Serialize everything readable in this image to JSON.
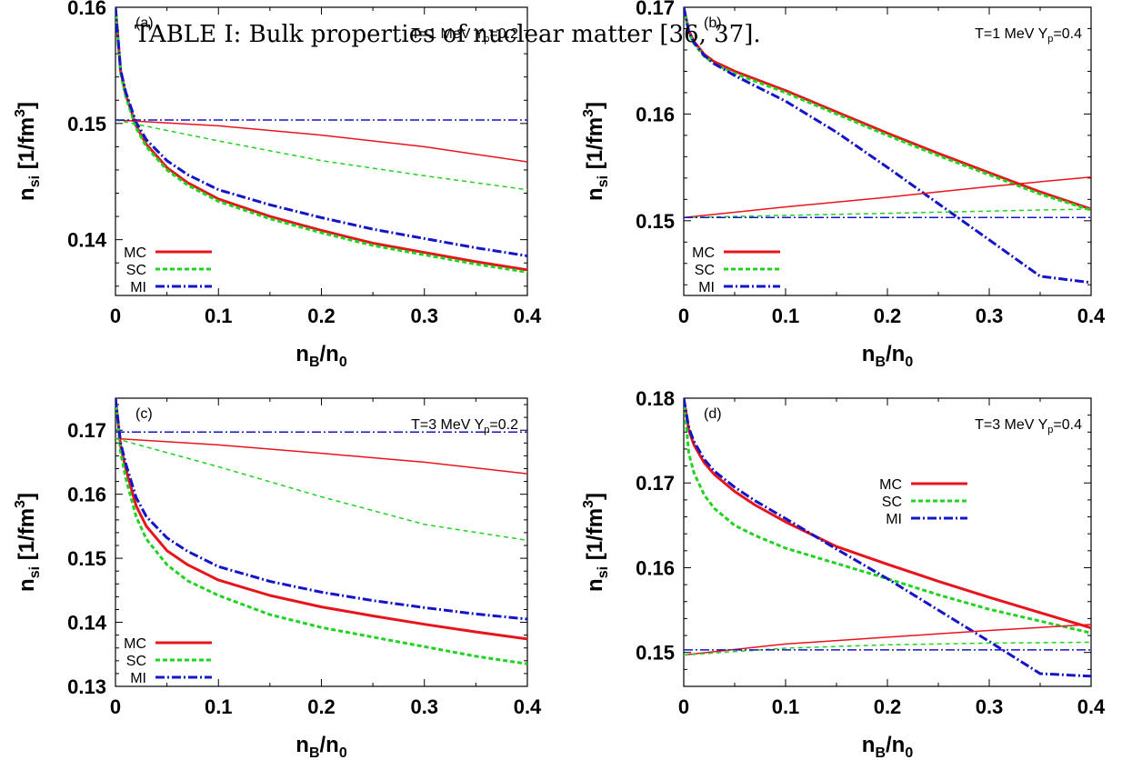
{
  "caption": "TABLE I: Bulk properties of nuclear matter [36, 37].",
  "colors": {
    "MC": "#e8141c",
    "SC": "#1fd31f",
    "MI": "#1414c8"
  },
  "chart_data": [
    {
      "type": "line",
      "panel_label": "(a)",
      "annotation": {
        "main": "T=1 MeV Y",
        "sub": "p",
        "tail": "=0.2"
      },
      "xlabel": {
        "main": "n",
        "sub": "B",
        "mid": "/n",
        "sub2": "0"
      },
      "ylabel": {
        "main": "n",
        "sub": "si",
        "mid": " [1/fm",
        "sup": "3",
        "tail": "]"
      },
      "xlim": [
        0,
        0.4
      ],
      "ylim": [
        0.1352,
        0.16
      ],
      "xticks": [
        "0",
        "0.1",
        "0.2",
        "0.3",
        "0.4"
      ],
      "yticks": [
        "0.14",
        "0.15",
        "0.16"
      ],
      "ytick_values": [
        0.14,
        0.15,
        0.16
      ],
      "legend": {
        "position": "bottom-left",
        "entries": [
          "MC",
          "SC",
          "MI"
        ]
      },
      "series": [
        {
          "name": "MC",
          "style": "thick",
          "x": [
            0,
            0.005,
            0.01,
            0.02,
            0.03,
            0.05,
            0.07,
            0.1,
            0.15,
            0.2,
            0.25,
            0.3,
            0.35,
            0.4
          ],
          "y": [
            0.16,
            0.1545,
            0.1525,
            0.1498,
            0.1482,
            0.1462,
            0.1449,
            0.1435,
            0.142,
            0.1408,
            0.1397,
            0.1389,
            0.1381,
            0.1374
          ]
        },
        {
          "name": "SC",
          "style": "thick",
          "x": [
            0,
            0.005,
            0.01,
            0.02,
            0.03,
            0.05,
            0.07,
            0.1,
            0.15,
            0.2,
            0.25,
            0.3,
            0.35,
            0.4
          ],
          "y": [
            0.16,
            0.1543,
            0.1523,
            0.1496,
            0.148,
            0.146,
            0.1447,
            0.1433,
            0.1418,
            0.1406,
            0.1395,
            0.1387,
            0.1379,
            0.1372
          ]
        },
        {
          "name": "MI",
          "style": "thick",
          "x": [
            0,
            0.005,
            0.01,
            0.02,
            0.03,
            0.05,
            0.07,
            0.1,
            0.15,
            0.2,
            0.25,
            0.3,
            0.35,
            0.4
          ],
          "y": [
            0.16,
            0.1546,
            0.1527,
            0.1501,
            0.1486,
            0.1468,
            0.1456,
            0.1443,
            0.143,
            0.1419,
            0.1409,
            0.1401,
            0.1393,
            0.1386
          ]
        },
        {
          "name": "MC",
          "style": "thin",
          "x": [
            0,
            0.1,
            0.2,
            0.3,
            0.4
          ],
          "y": [
            0.1503,
            0.1498,
            0.149,
            0.148,
            0.1467
          ]
        },
        {
          "name": "SC",
          "style": "thin",
          "x": [
            0,
            0.1,
            0.2,
            0.3,
            0.4
          ],
          "y": [
            0.1503,
            0.1485,
            0.1468,
            0.1455,
            0.1443
          ]
        },
        {
          "name": "MI",
          "style": "thin",
          "x": [
            0,
            0.4
          ],
          "y": [
            0.1503,
            0.1503
          ]
        }
      ]
    },
    {
      "type": "line",
      "panel_label": "(b)",
      "annotation": {
        "main": "T=1 MeV Y",
        "sub": "p",
        "tail": "=0.4"
      },
      "xlabel": {
        "main": "n",
        "sub": "B",
        "mid": "/n",
        "sub2": "0"
      },
      "ylabel": {
        "main": "n",
        "sub": "si",
        "mid": " [1/fm",
        "sup": "3",
        "tail": "]"
      },
      "xlim": [
        0,
        0.4
      ],
      "ylim": [
        0.143,
        0.17
      ],
      "xticks": [
        "0",
        "0.1",
        "0.2",
        "0.3",
        "0.4"
      ],
      "yticks": [
        "0.15",
        "0.16",
        "0.17"
      ],
      "ytick_values": [
        0.15,
        0.16,
        0.17
      ],
      "legend": {
        "position": "bottom-left",
        "entries": [
          "MC",
          "SC",
          "MI"
        ]
      },
      "series": [
        {
          "name": "MC",
          "style": "thick",
          "x": [
            0,
            0.005,
            0.01,
            0.02,
            0.03,
            0.05,
            0.1,
            0.15,
            0.2,
            0.25,
            0.3,
            0.35,
            0.4
          ],
          "y": [
            0.17,
            0.1678,
            0.1668,
            0.1656,
            0.1649,
            0.164,
            0.1622,
            0.1602,
            0.1582,
            0.1563,
            0.1545,
            0.1527,
            0.1511
          ]
        },
        {
          "name": "SC",
          "style": "thick",
          "x": [
            0,
            0.005,
            0.01,
            0.02,
            0.03,
            0.05,
            0.1,
            0.15,
            0.2,
            0.25,
            0.3,
            0.35,
            0.4
          ],
          "y": [
            0.17,
            0.1676,
            0.1666,
            0.1654,
            0.1647,
            0.1638,
            0.162,
            0.16,
            0.158,
            0.1561,
            0.1543,
            0.1525,
            0.151
          ]
        },
        {
          "name": "MI",
          "style": "thick",
          "x": [
            0,
            0.005,
            0.01,
            0.02,
            0.03,
            0.05,
            0.1,
            0.15,
            0.2,
            0.25,
            0.3,
            0.35,
            0.4
          ],
          "y": [
            0.17,
            0.1677,
            0.1667,
            0.1655,
            0.1647,
            0.1636,
            0.1612,
            0.1583,
            0.155,
            0.1516,
            0.1482,
            0.1448,
            0.1442
          ]
        },
        {
          "name": "MC",
          "style": "thin",
          "x": [
            0,
            0.1,
            0.2,
            0.3,
            0.4
          ],
          "y": [
            0.1503,
            0.1513,
            0.1522,
            0.1532,
            0.1541
          ]
        },
        {
          "name": "SC",
          "style": "thin",
          "x": [
            0,
            0.1,
            0.2,
            0.3,
            0.4
          ],
          "y": [
            0.1503,
            0.1505,
            0.1507,
            0.1509,
            0.1511
          ]
        },
        {
          "name": "MI",
          "style": "thin",
          "x": [
            0,
            0.4
          ],
          "y": [
            0.1503,
            0.1503
          ]
        }
      ]
    },
    {
      "type": "line",
      "panel_label": "(c)",
      "annotation": {
        "main": "T=3 MeV Y",
        "sub": "p",
        "tail": "=0.2"
      },
      "xlabel": {
        "main": "n",
        "sub": "B",
        "mid": "/n",
        "sub2": "0"
      },
      "ylabel": {
        "main": "n",
        "sub": "si",
        "mid": " [1/fm",
        "sup": "3",
        "tail": "]"
      },
      "xlim": [
        0,
        0.4
      ],
      "ylim": [
        0.13,
        0.175
      ],
      "xticks": [
        "0",
        "0.1",
        "0.2",
        "0.3",
        "0.4"
      ],
      "yticks": [
        "0.13",
        "0.14",
        "0.15",
        "0.16",
        "0.17"
      ],
      "ytick_values": [
        0.13,
        0.14,
        0.15,
        0.16,
        0.17
      ],
      "legend": {
        "position": "bottom-left",
        "entries": [
          "MC",
          "SC",
          "MI"
        ]
      },
      "series": [
        {
          "name": "MC",
          "style": "thick",
          "x": [
            0,
            0.005,
            0.01,
            0.02,
            0.03,
            0.05,
            0.07,
            0.1,
            0.15,
            0.2,
            0.25,
            0.3,
            0.35,
            0.4
          ],
          "y": [
            0.175,
            0.1675,
            0.164,
            0.1582,
            0.155,
            0.1512,
            0.149,
            0.1466,
            0.1442,
            0.1424,
            0.141,
            0.1397,
            0.1385,
            0.1374
          ]
        },
        {
          "name": "SC",
          "style": "thick",
          "x": [
            0,
            0.005,
            0.01,
            0.02,
            0.03,
            0.05,
            0.07,
            0.1,
            0.15,
            0.2,
            0.25,
            0.3,
            0.35,
            0.4
          ],
          "y": [
            0.175,
            0.1665,
            0.1625,
            0.1565,
            0.153,
            0.149,
            0.1465,
            0.1442,
            0.1412,
            0.1392,
            0.1377,
            0.1362,
            0.1347,
            0.1335
          ]
        },
        {
          "name": "MI",
          "style": "thick",
          "x": [
            0,
            0.005,
            0.01,
            0.02,
            0.03,
            0.05,
            0.07,
            0.1,
            0.15,
            0.2,
            0.25,
            0.3,
            0.35,
            0.4
          ],
          "y": [
            0.175,
            0.168,
            0.1648,
            0.1595,
            0.1565,
            0.1532,
            0.1511,
            0.1487,
            0.1464,
            0.1447,
            0.1434,
            0.1423,
            0.1413,
            0.1405
          ]
        },
        {
          "name": "MC",
          "style": "thin",
          "x": [
            0,
            0.1,
            0.2,
            0.3,
            0.4
          ],
          "y": [
            0.1687,
            0.1677,
            0.1664,
            0.165,
            0.1632
          ]
        },
        {
          "name": "SC",
          "style": "thin",
          "x": [
            0,
            0.1,
            0.2,
            0.3,
            0.4
          ],
          "y": [
            0.1687,
            0.1643,
            0.1596,
            0.1553,
            0.1528
          ]
        },
        {
          "name": "MI",
          "style": "thin",
          "x": [
            0,
            0.4
          ],
          "y": [
            0.1697,
            0.1697
          ]
        }
      ]
    },
    {
      "type": "line",
      "panel_label": "(d)",
      "annotation": {
        "main": "T=3 MeV Y",
        "sub": "p",
        "tail": "=0.4"
      },
      "xlabel": {
        "main": "n",
        "sub": "B",
        "mid": "/n",
        "sub2": "0"
      },
      "ylabel": {
        "main": "n",
        "sub": "si",
        "mid": " [1/fm",
        "sup": "3",
        "tail": "]"
      },
      "xlim": [
        0,
        0.4
      ],
      "ylim": [
        0.146,
        0.18
      ],
      "xticks": [
        "0",
        "0.1",
        "0.2",
        "0.3",
        "0.4"
      ],
      "yticks": [
        "0.15",
        "0.16",
        "0.17",
        "0.18"
      ],
      "ytick_values": [
        0.15,
        0.16,
        0.17,
        0.18
      ],
      "legend": {
        "position": "center",
        "entries": [
          "MC",
          "SC",
          "MI"
        ]
      },
      "series": [
        {
          "name": "MC",
          "style": "thick",
          "x": [
            0,
            0.005,
            0.01,
            0.02,
            0.03,
            0.05,
            0.07,
            0.1,
            0.15,
            0.2,
            0.25,
            0.3,
            0.35,
            0.4
          ],
          "y": [
            0.18,
            0.1762,
            0.1745,
            0.1724,
            0.171,
            0.169,
            0.1674,
            0.1654,
            0.1625,
            0.1604,
            0.1584,
            0.1565,
            0.1547,
            0.1529
          ]
        },
        {
          "name": "SC",
          "style": "thick",
          "x": [
            0,
            0.005,
            0.01,
            0.02,
            0.03,
            0.05,
            0.07,
            0.1,
            0.15,
            0.2,
            0.25,
            0.3,
            0.35,
            0.4
          ],
          "y": [
            0.18,
            0.1735,
            0.1712,
            0.1686,
            0.167,
            0.165,
            0.1638,
            0.1623,
            0.1605,
            0.1587,
            0.1568,
            0.1551,
            0.1537,
            0.1523
          ]
        },
        {
          "name": "MI",
          "style": "thick",
          "x": [
            0,
            0.005,
            0.01,
            0.02,
            0.03,
            0.05,
            0.07,
            0.1,
            0.15,
            0.2,
            0.25,
            0.3,
            0.35,
            0.4
          ],
          "y": [
            0.18,
            0.1765,
            0.1749,
            0.1728,
            0.1714,
            0.1695,
            0.1679,
            0.1658,
            0.1622,
            0.1587,
            0.155,
            0.1513,
            0.1475,
            0.1472
          ]
        },
        {
          "name": "MC",
          "style": "thin",
          "x": [
            0,
            0.1,
            0.2,
            0.3,
            0.4
          ],
          "y": [
            0.1497,
            0.151,
            0.1518,
            0.1526,
            0.1533
          ]
        },
        {
          "name": "SC",
          "style": "thin",
          "x": [
            0,
            0.1,
            0.2,
            0.3,
            0.4
          ],
          "y": [
            0.1497,
            0.1505,
            0.1509,
            0.1511,
            0.1512
          ]
        },
        {
          "name": "MI",
          "style": "thin",
          "x": [
            0,
            0.4
          ],
          "y": [
            0.1503,
            0.1503
          ]
        }
      ]
    }
  ]
}
